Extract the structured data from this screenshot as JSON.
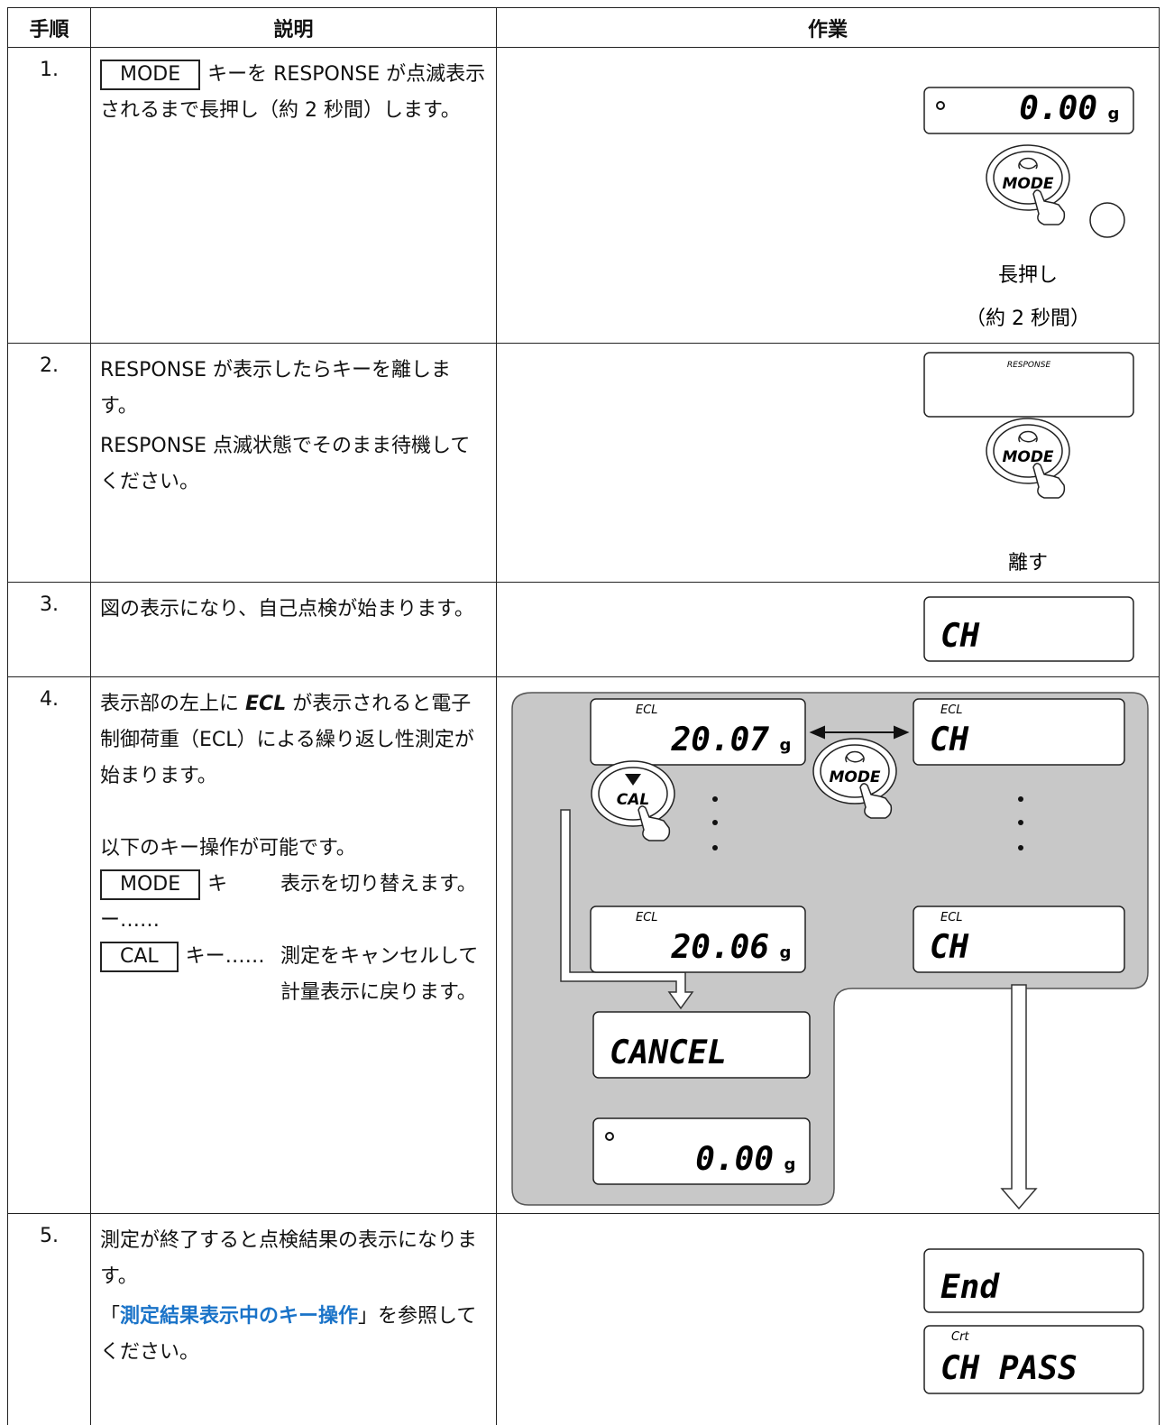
{
  "header": {
    "columns": [
      "手順",
      "説明",
      "作業"
    ]
  },
  "rows": [
    {
      "step": "1.",
      "key": "MODE",
      "text": "キーを RESPONSE が点滅表示されるまで長押し（約 2 秒間）します。",
      "display": {
        "value": "0.00",
        "unit": "g"
      },
      "button": "MODE",
      "caption": "長押し",
      "caption2": "（約 2 秒間）"
    },
    {
      "step": "2.",
      "text": "RESPONSE が表示したらキーを離します。",
      "text2": "RESPONSE 点滅状態でそのまま待機してください。",
      "display": {
        "indicator": "RESPONSE"
      },
      "button": "MODE",
      "caption": "離す"
    },
    {
      "step": "3.",
      "text": "図の表示になり、自己点検が始まります。",
      "display": {
        "value": "CH"
      }
    },
    {
      "step": "4.",
      "text_before": "表示部の左上に",
      "indicator": "ECL",
      "text_after": "が表示されると電子制御荷重（ECL）による繰り返し性測定が始まります。",
      "note": "以下のキー操作が可能です。",
      "keys": [
        {
          "key": "MODE",
          "dots": "キー……",
          "desc": "表示を切り替えます。"
        },
        {
          "key": "CAL",
          "dots": "キー……",
          "desc": "測定をキャンセルして計量表示に戻ります。"
        }
      ],
      "displays": [
        {
          "indicator": "ECL",
          "value": "20.07",
          "unit": "g"
        },
        {
          "indicator": "ECL",
          "value": "CH"
        },
        {
          "indicator": "ECL",
          "value": "20.06",
          "unit": "g"
        },
        {
          "indicator": "ECL",
          "value": "CH"
        },
        {
          "value": "CANCEL"
        },
        {
          "value": "0.00",
          "unit": "g"
        }
      ],
      "buttons": [
        "CAL",
        "MODE"
      ]
    },
    {
      "step": "5.",
      "text": "測定が終了すると点検結果の表示になります。",
      "ref_open": "「",
      "link": "測定結果表示中のキー操作",
      "ref_close": "」を参照してください。",
      "displays": [
        {
          "value": "End"
        },
        {
          "indicator": "Crt",
          "value": "CH PASS"
        }
      ]
    }
  ]
}
